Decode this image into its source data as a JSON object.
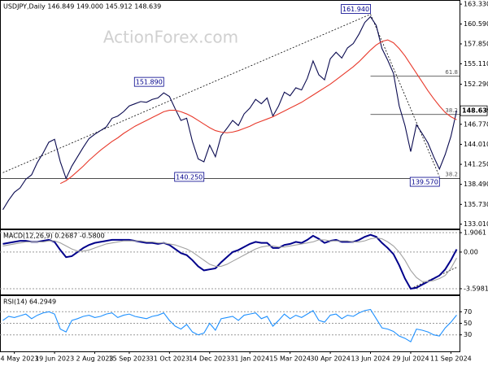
{
  "chart_data": [
    {
      "type": "line",
      "title": "USDJPY,Daily 146.849 149.000 145.912 148.639",
      "watermark": "ActionForex.com",
      "ylim": [
        132.4,
        163.9
      ],
      "grid": false,
      "yticks": [
        {
          "value": 163.33,
          "label": "163.330"
        },
        {
          "value": 160.59,
          "label": "160.590"
        },
        {
          "value": 157.85,
          "label": "157.850"
        },
        {
          "value": 155.11,
          "label": "155.110"
        },
        {
          "value": 152.29,
          "label": "152.290"
        },
        {
          "value": 146.77,
          "label": "146.770"
        },
        {
          "value": 144.01,
          "label": "144.010"
        },
        {
          "value": 141.25,
          "label": "141.250"
        },
        {
          "value": 138.49,
          "label": "138.490"
        },
        {
          "value": 135.73,
          "label": "135.730"
        },
        {
          "value": 133.01,
          "label": "133.010"
        }
      ],
      "series": [
        {
          "color": "#0a0a50",
          "values": [
            135.0,
            136.3,
            137.4,
            138.0,
            139.2,
            139.8,
            141.5,
            142.8,
            144.3,
            144.7,
            141.6,
            139.3,
            141.0,
            142.3,
            143.6,
            144.8,
            145.4,
            145.9,
            146.4,
            147.6,
            147.9,
            148.5,
            149.3,
            149.6,
            149.9,
            149.8,
            150.2,
            150.4,
            151.1,
            150.6,
            148.9,
            147.3,
            147.6,
            144.4,
            142.0,
            141.6,
            143.9,
            142.3,
            145.2,
            146.2,
            147.3,
            146.6,
            148.2,
            149.0,
            150.2,
            149.6,
            150.4,
            147.9,
            149.3,
            151.2,
            150.7,
            151.8,
            151.5,
            153.1,
            155.5,
            153.6,
            152.9,
            155.8,
            156.7,
            155.9,
            157.3,
            157.9,
            159.2,
            160.8,
            161.6,
            160.4,
            157.2,
            155.6,
            153.8,
            149.3,
            146.6,
            143.0,
            146.7,
            145.5,
            144.2,
            142.3,
            140.6,
            142.6,
            145.1,
            148.639
          ]
        },
        {
          "color": "#e8392b",
          "values": [
            null,
            null,
            null,
            null,
            null,
            null,
            null,
            null,
            null,
            null,
            138.6,
            139.0,
            139.6,
            140.3,
            141.0,
            141.8,
            142.5,
            143.2,
            143.8,
            144.4,
            144.9,
            145.5,
            146.0,
            146.5,
            146.9,
            147.3,
            147.7,
            148.1,
            148.5,
            148.7,
            148.7,
            148.5,
            148.2,
            147.8,
            147.3,
            146.8,
            146.3,
            145.9,
            145.7,
            145.6,
            145.7,
            145.9,
            146.2,
            146.5,
            146.9,
            147.2,
            147.5,
            147.8,
            148.2,
            148.6,
            149.0,
            149.4,
            149.8,
            150.3,
            150.8,
            151.3,
            151.8,
            152.3,
            152.9,
            153.5,
            154.1,
            154.7,
            155.4,
            156.2,
            157.0,
            157.7,
            158.2,
            158.4,
            158.0,
            157.2,
            156.2,
            155.0,
            153.8,
            152.6,
            151.4,
            150.3,
            149.3,
            148.4,
            147.8,
            147.4
          ]
        }
      ],
      "trendlines": [
        {
          "from": [
            0,
            140.1
          ],
          "to": [
            64,
            161.94
          ]
        },
        {
          "from": [
            64,
            161.94
          ],
          "to": [
            76,
            139.57
          ]
        }
      ],
      "levels": [
        {
          "value": 153.39,
          "label": "61.8",
          "from": 64
        },
        {
          "value": 148.12,
          "label": "38.2",
          "from": 64
        },
        {
          "value": 139.3,
          "label": "38.2"
        }
      ],
      "annotations": [
        {
          "x": 64,
          "value": 161.94,
          "label": "161.940"
        },
        {
          "x": 28,
          "value": 151.89,
          "label": "151.890"
        },
        {
          "x": 35,
          "value": 140.25,
          "label": "140.250"
        },
        {
          "x": 76,
          "value": 139.57,
          "label": "139.570"
        }
      ],
      "last": {
        "value": 148.639,
        "label": "148.639"
      }
    },
    {
      "type": "line",
      "title": "MACD(12,26,9) 0.2687 -0.5800",
      "ylim": [
        -4.16,
        2.23
      ],
      "grid": true,
      "yticks": [
        1.9061,
        {
          "value": 0,
          "label": "0.00"
        },
        -3.5981
      ],
      "series": [
        {
          "color": "#00008b",
          "values": [
            0.8,
            0.9,
            1.0,
            1.1,
            1.1,
            1.0,
            1.0,
            1.1,
            1.2,
            1.0,
            0.2,
            -0.5,
            -0.4,
            0.0,
            0.4,
            0.7,
            0.9,
            1.0,
            1.1,
            1.2,
            1.2,
            1.2,
            1.2,
            1.1,
            1.0,
            0.9,
            0.9,
            0.8,
            0.9,
            0.7,
            0.3,
            -0.1,
            -0.3,
            -0.8,
            -1.4,
            -1.8,
            -1.7,
            -1.6,
            -1.0,
            -0.5,
            0.0,
            0.2,
            0.5,
            0.8,
            1.0,
            0.9,
            0.9,
            0.4,
            0.4,
            0.7,
            0.8,
            1.0,
            0.9,
            1.2,
            1.6,
            1.3,
            0.9,
            1.1,
            1.2,
            1.0,
            1.0,
            1.0,
            1.2,
            1.5,
            1.7,
            1.5,
            0.9,
            0.4,
            -0.2,
            -1.3,
            -2.6,
            -3.6,
            -3.5,
            -3.2,
            -2.9,
            -2.6,
            -2.3,
            -1.7,
            -0.8,
            0.2687
          ]
        },
        {
          "color": "#a0a0a0",
          "values": [
            0.6,
            0.7,
            0.8,
            0.9,
            1.0,
            1.0,
            1.0,
            1.0,
            1.1,
            1.1,
            0.9,
            0.6,
            0.3,
            0.1,
            0.1,
            0.2,
            0.4,
            0.6,
            0.8,
            0.9,
            1.0,
            1.1,
            1.1,
            1.1,
            1.1,
            1.0,
            1.0,
            0.9,
            0.9,
            0.8,
            0.7,
            0.5,
            0.3,
            0.0,
            -0.4,
            -0.8,
            -1.2,
            -1.4,
            -1.4,
            -1.2,
            -0.9,
            -0.6,
            -0.3,
            0.0,
            0.3,
            0.5,
            0.6,
            0.6,
            0.5,
            0.5,
            0.6,
            0.7,
            0.8,
            0.9,
            1.0,
            1.2,
            1.2,
            1.1,
            1.1,
            1.1,
            1.1,
            1.0,
            1.0,
            1.1,
            1.3,
            1.4,
            1.3,
            1.0,
            0.6,
            0.0,
            -0.8,
            -1.8,
            -2.5,
            -2.9,
            -2.9,
            -2.8,
            -2.6,
            -2.3,
            -1.6,
            -0.58
          ]
        }
      ],
      "trendlines": [
        {
          "from": [
            71,
            -3.6
          ],
          "to": [
            79,
            -1.5
          ]
        }
      ]
    },
    {
      "type": "line",
      "title": "RSI(14) 64.2949",
      "ylim": [
        1.4,
        98.6
      ],
      "grid": true,
      "yticks": [
        70,
        50,
        30
      ],
      "series": [
        {
          "color": "#1e90ff",
          "values": [
            55,
            62,
            60,
            63,
            66,
            58,
            64,
            68,
            70,
            66,
            40,
            35,
            55,
            58,
            62,
            64,
            60,
            62,
            66,
            68,
            60,
            64,
            66,
            62,
            60,
            58,
            62,
            64,
            68,
            55,
            45,
            40,
            48,
            35,
            30,
            33,
            50,
            38,
            58,
            60,
            62,
            55,
            64,
            66,
            68,
            58,
            62,
            45,
            55,
            66,
            58,
            64,
            60,
            66,
            72,
            55,
            52,
            64,
            66,
            58,
            64,
            62,
            68,
            72,
            74,
            58,
            42,
            40,
            36,
            28,
            24,
            18,
            40,
            38,
            35,
            30,
            28,
            42,
            52,
            64.2949
          ]
        }
      ],
      "categories": [
        null,
        null,
        "4 May 2023",
        null,
        null,
        null,
        null,
        null,
        null,
        "19 Jun 2023",
        null,
        null,
        null,
        null,
        null,
        null,
        "2 Aug 2023",
        null,
        null,
        null,
        null,
        null,
        "15 Sep 2023",
        null,
        null,
        null,
        null,
        null,
        null,
        "31 Oct 2023",
        null,
        null,
        null,
        null,
        null,
        null,
        "14 Dec 2023",
        null,
        null,
        null,
        null,
        null,
        null,
        "31 Jan 2024",
        null,
        null,
        null,
        null,
        null,
        null,
        "15 Mar 2024",
        null,
        null,
        null,
        null,
        null,
        null,
        "30 Apr 2024",
        null,
        null,
        null,
        null,
        null,
        null,
        "13 Jun 2024",
        null,
        null,
        null,
        null,
        null,
        null,
        "29 Jul 2024",
        null,
        null,
        null,
        null,
        null,
        null,
        "11 Sep 2024",
        null
      ]
    }
  ]
}
